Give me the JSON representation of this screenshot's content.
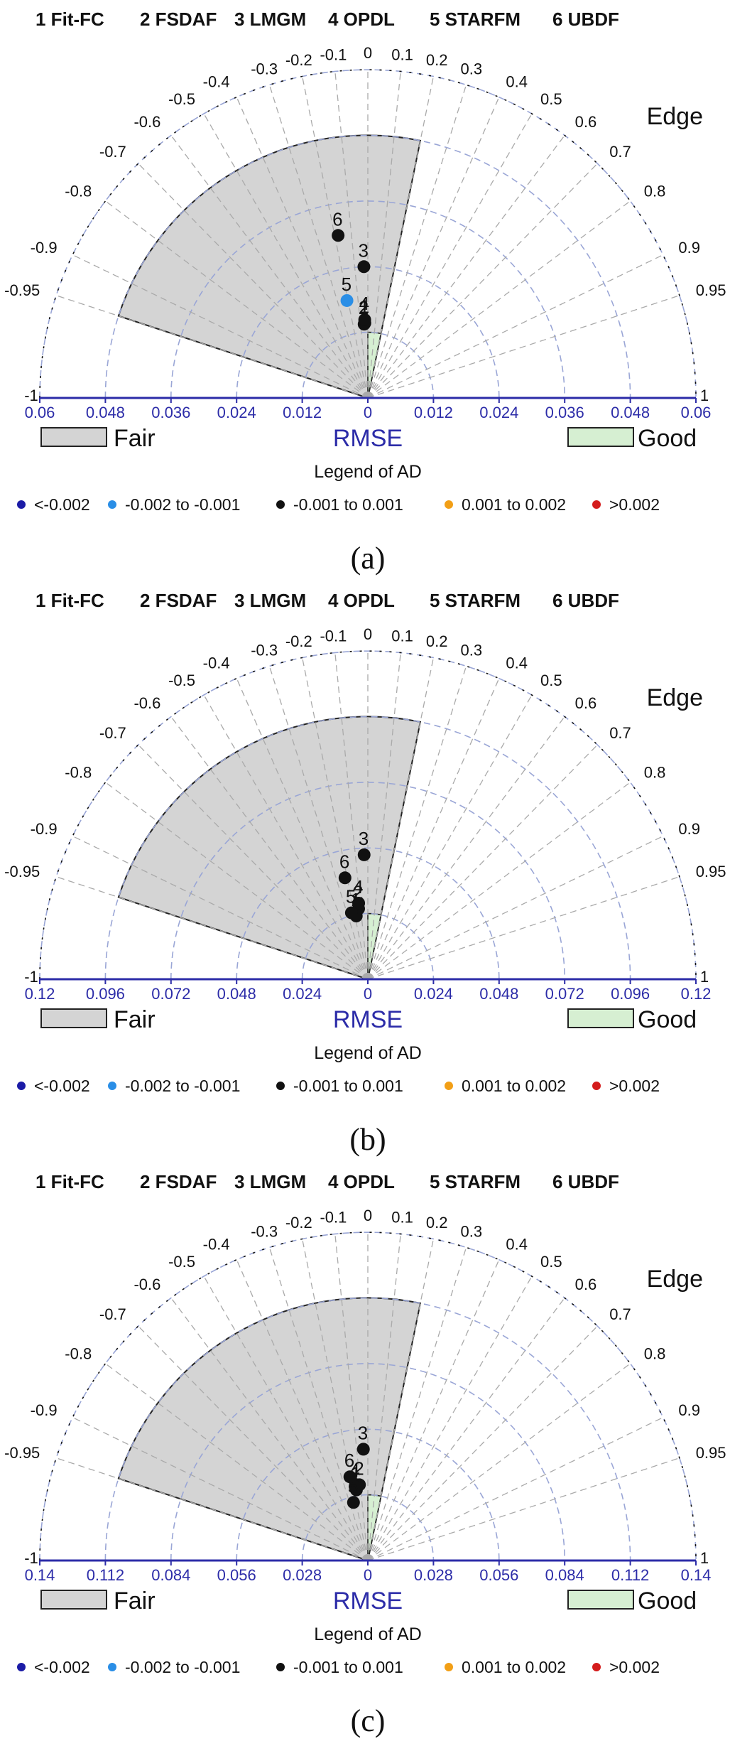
{
  "colors": {
    "fair_fill": "#d4d4d4",
    "good_fill": "#d6efd2",
    "grid": "#9aa6d6",
    "spoke": "#aaaaaa",
    "axis": "#2c2ca8",
    "point": "#111111",
    "legend_dots": [
      "#1b1ba6",
      "#2a8ee6",
      "#111111",
      "#f29f16",
      "#d41c1c"
    ]
  },
  "chart_data": [
    {
      "type": "scatter",
      "panel": "(a)",
      "methods": [
        "1 Fit-FC",
        "2 FSDAF",
        "3 LMGM",
        "4 OPDL",
        "5 STARFM",
        "6 UBDF"
      ],
      "edge_label": "Edge",
      "edge_ticks": [
        "-1",
        "-0.95",
        "-0.9",
        "-0.8",
        "-0.7",
        "-0.6",
        "-0.5",
        "-0.4",
        "-0.3",
        "-0.2",
        "-0.1",
        "0",
        "0.1",
        "0.2",
        "0.3",
        "0.4",
        "0.5",
        "0.6",
        "0.7",
        "0.8",
        "0.9",
        "0.95",
        "1"
      ],
      "xlabel": "RMSE",
      "rmse_max": 0.06,
      "rmse_ticks": [
        "0.06",
        "0.048",
        "0.036",
        "0.024",
        "0.012",
        "0",
        "0.012",
        "0.024",
        "0.036",
        "0.048",
        "0.06"
      ],
      "regions": [
        {
          "label": "Fair",
          "edge_range": [
            -0.95,
            0.2
          ],
          "rmse_max": 0.048
        },
        {
          "label": "Good",
          "edge_range": [
            0,
            0.2
          ],
          "rmse_max": 0.012
        }
      ],
      "legend_title": "Legend of AD",
      "legend": [
        "<-0.002",
        "-0.002 to -0.001",
        "-0.001 to 0.001",
        "0.001 to 0.002",
        ">0.002"
      ],
      "points": [
        {
          "label": "1",
          "edge": -0.04,
          "rmse": 0.0137,
          "ad_class": 2
        },
        {
          "label": "2",
          "edge": -0.05,
          "rmse": 0.0135,
          "ad_class": 2
        },
        {
          "label": "3",
          "edge": -0.03,
          "rmse": 0.024,
          "ad_class": 2
        },
        {
          "label": "4",
          "edge": -0.04,
          "rmse": 0.0143,
          "ad_class": 2
        },
        {
          "label": "5",
          "edge": -0.21,
          "rmse": 0.0182,
          "ad_class": 1
        },
        {
          "label": "6",
          "edge": -0.18,
          "rmse": 0.0302,
          "ad_class": 2
        }
      ],
      "caption": "(a)"
    },
    {
      "type": "scatter",
      "panel": "(b)",
      "methods": [
        "1 Fit-FC",
        "2 FSDAF",
        "3 LMGM",
        "4 OPDL",
        "5 STARFM",
        "6 UBDF"
      ],
      "edge_label": "Edge",
      "edge_ticks": [
        "-1",
        "-0.95",
        "-0.9",
        "-0.8",
        "-0.7",
        "-0.6",
        "-0.5",
        "-0.4",
        "-0.3",
        "-0.2",
        "-0.1",
        "0",
        "0.1",
        "0.2",
        "0.3",
        "0.4",
        "0.5",
        "0.6",
        "0.7",
        "0.8",
        "0.9",
        "0.95",
        "1"
      ],
      "xlabel": "RMSE",
      "rmse_max": 0.12,
      "rmse_ticks": [
        "0.12",
        "0.096",
        "0.072",
        "0.048",
        "0.024",
        "0",
        "0.024",
        "0.048",
        "0.072",
        "0.096",
        "0.12"
      ],
      "regions": [
        {
          "label": "Fair",
          "edge_range": [
            -0.95,
            0.2
          ],
          "rmse_max": 0.096
        },
        {
          "label": "Good",
          "edge_range": [
            0,
            0.2
          ],
          "rmse_max": 0.024
        }
      ],
      "legend_title": "Legend of AD",
      "legend": [
        "<-0.002",
        "-0.002 to -0.001",
        "-0.001 to 0.001",
        "0.001 to 0.002",
        ">0.002"
      ],
      "points": [
        {
          "label": "1",
          "edge": -0.18,
          "rmse": 0.0235,
          "ad_class": 2
        },
        {
          "label": "2",
          "edge": -0.13,
          "rmse": 0.026,
          "ad_class": 2
        },
        {
          "label": "3",
          "edge": -0.03,
          "rmse": 0.0455,
          "ad_class": 2
        },
        {
          "label": "4",
          "edge": -0.12,
          "rmse": 0.028,
          "ad_class": 2
        },
        {
          "label": "5",
          "edge": -0.24,
          "rmse": 0.025,
          "ad_class": 2
        },
        {
          "label": "6",
          "edge": -0.22,
          "rmse": 0.038,
          "ad_class": 2
        }
      ],
      "caption": "(b)"
    },
    {
      "type": "scatter",
      "panel": "(c)",
      "methods": [
        "1 Fit-FC",
        "2 FSDAF",
        "3 LMGM",
        "4 OPDL",
        "5 STARFM",
        "6 UBDF"
      ],
      "edge_label": "Edge",
      "edge_ticks": [
        "-1",
        "-0.95",
        "-0.9",
        "-0.8",
        "-0.7",
        "-0.6",
        "-0.5",
        "-0.4",
        "-0.3",
        "-0.2",
        "-0.1",
        "0",
        "0.1",
        "0.2",
        "0.3",
        "0.4",
        "0.5",
        "0.6",
        "0.7",
        "0.8",
        "0.9",
        "0.95",
        "1"
      ],
      "xlabel": "RMSE",
      "rmse_max": 0.14,
      "rmse_ticks": [
        "0.14",
        "0.112",
        "0.084",
        "0.056",
        "0.028",
        "0",
        "0.028",
        "0.056",
        "0.084",
        "0.112",
        "0.14"
      ],
      "regions": [
        {
          "label": "Fair",
          "edge_range": [
            -0.95,
            0.2
          ],
          "rmse_max": 0.112
        },
        {
          "label": "Good",
          "edge_range": [
            0,
            0.2
          ],
          "rmse_max": 0.028
        }
      ],
      "legend_title": "Legend of AD",
      "legend": [
        "<-0.002",
        "-0.002 to -0.001",
        "-0.001 to 0.001",
        "0.001 to 0.002",
        ">0.002"
      ],
      "points": [
        {
          "label": "1",
          "edge": -0.16,
          "rmse": 0.0305,
          "ad_class": 2
        },
        {
          "label": "2",
          "edge": -0.11,
          "rmse": 0.0325,
          "ad_class": 2
        },
        {
          "label": "3",
          "edge": -0.04,
          "rmse": 0.0475,
          "ad_class": 2
        },
        {
          "label": "4",
          "edge": -0.17,
          "rmse": 0.032,
          "ad_class": 2
        },
        {
          "label": "5",
          "edge": -0.24,
          "rmse": 0.0255,
          "ad_class": 2
        },
        {
          "label": "6",
          "edge": -0.21,
          "rmse": 0.0365,
          "ad_class": 2
        }
      ],
      "caption": "(c)"
    }
  ]
}
